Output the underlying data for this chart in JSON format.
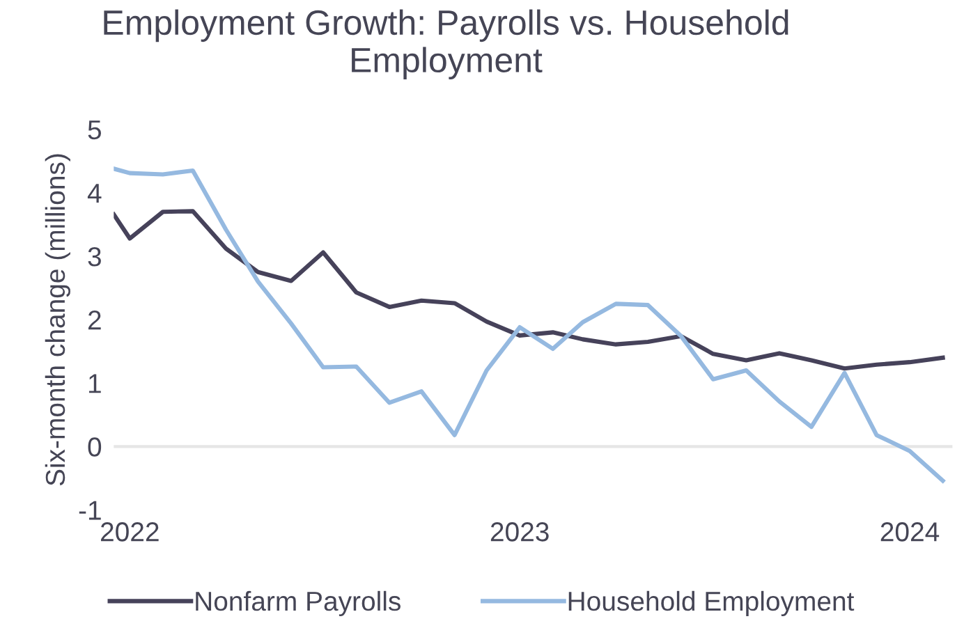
{
  "chart_data": {
    "type": "line",
    "title": "Employment Growth: Payrolls vs. Household Employment",
    "ylabel": "Six-month change (millions)",
    "x": [
      "2021-12-17",
      "2022-01",
      "2022-02",
      "2022-03",
      "2022-04",
      "2022-05",
      "2022-06",
      "2022-07",
      "2022-08",
      "2022-09",
      "2022-10",
      "2022-11",
      "2022-12",
      "2023-01",
      "2023-02",
      "2023-03",
      "2023-04",
      "2023-05",
      "2023-06",
      "2023-07",
      "2023-08",
      "2023-09",
      "2023-10",
      "2023-11",
      "2023-12",
      "2024-01",
      "2024-02"
    ],
    "series": [
      {
        "name": "Nonfarm Payrolls",
        "color": "#46425a",
        "values": [
          3.66,
          3.28,
          3.7,
          3.71,
          3.12,
          2.75,
          2.61,
          3.06,
          2.43,
          2.2,
          2.3,
          2.26,
          1.97,
          1.75,
          1.8,
          1.69,
          1.61,
          1.65,
          1.74,
          1.46,
          1.36,
          1.47,
          1.36,
          1.23,
          1.29,
          1.33,
          1.4
        ]
      },
      {
        "name": "Household Employment",
        "color": "#95b9e0",
        "values": [
          4.38,
          4.31,
          4.29,
          4.35,
          3.42,
          2.6,
          1.94,
          1.25,
          1.26,
          0.69,
          0.87,
          0.18,
          1.2,
          1.88,
          1.54,
          1.96,
          2.25,
          2.23,
          1.74,
          1.06,
          1.2,
          0.71,
          0.31,
          1.16,
          0.18,
          -0.07,
          -0.54
        ]
      }
    ],
    "xlim": [
      "2021-12-17",
      "2024-02-10"
    ],
    "xticks": [
      {
        "value": "2022-01",
        "label": "2022"
      },
      {
        "value": "2023-01",
        "label": "2023"
      },
      {
        "value": "2024-01",
        "label": "2024"
      }
    ],
    "ylim": [
      -1,
      5
    ],
    "yticks": [
      5,
      4,
      3,
      2,
      1,
      0,
      {
        "value": -1,
        "label": "-1"
      }
    ],
    "ref_lines": [
      {
        "axis": "y",
        "value": 0,
        "label": null,
        "color": "#e6e6e6"
      }
    ],
    "grid": false,
    "legend": "bottom",
    "line_style": "solid",
    "marker": "none"
  }
}
